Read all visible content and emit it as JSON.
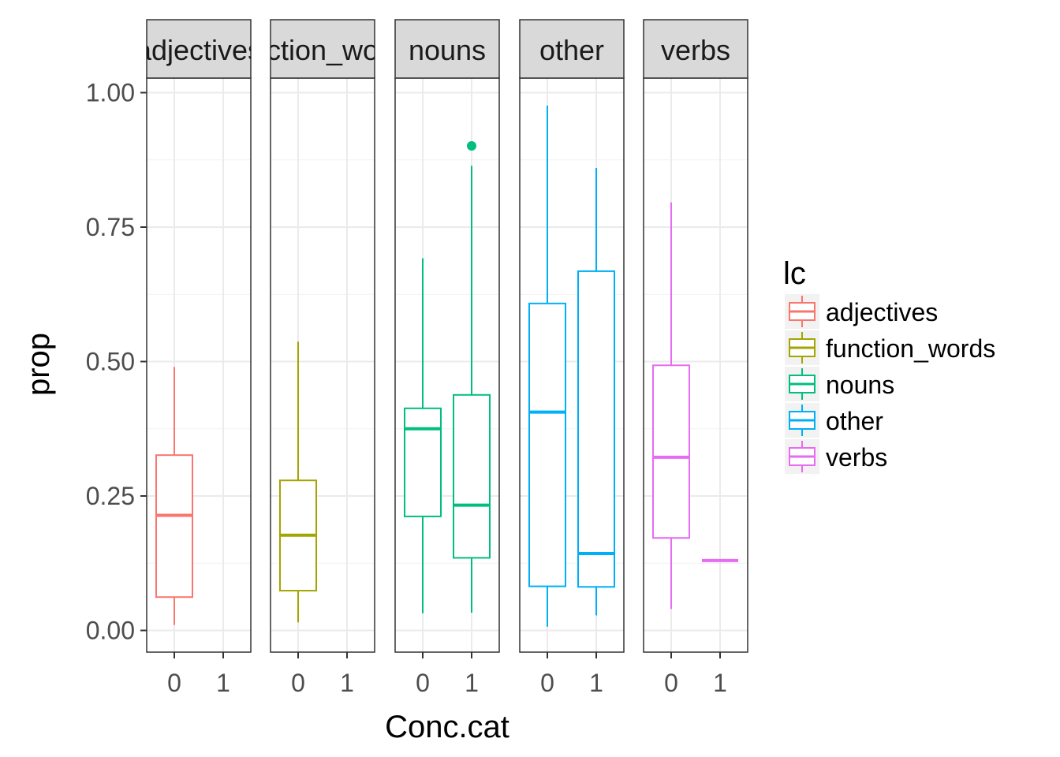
{
  "chart_data": {
    "type": "boxplot",
    "facet_variable": "lc",
    "xlabel": "Conc.cat",
    "ylabel": "prop",
    "ylim": [
      -0.04,
      1.04
    ],
    "y_ticks": [
      0.0,
      0.25,
      0.5,
      0.75,
      1.0
    ],
    "y_tick_labels": [
      "0.00",
      "0.25",
      "0.50",
      "0.75",
      "1.00"
    ],
    "x_categories": [
      "0",
      "1"
    ],
    "grid": true,
    "legend_position": "right",
    "legend": {
      "title": "lc",
      "entries": [
        "adjectives",
        "function_words",
        "nouns",
        "other",
        "verbs"
      ]
    },
    "colors": {
      "adjectives": "#F8766D",
      "function_words": "#A3A500",
      "nouns": "#00BF7D",
      "other": "#00B0F6",
      "verbs": "#E76BF3"
    },
    "facets": [
      {
        "strip_label": "adjectives",
        "boxes": [
          {
            "x": "0",
            "min": 0.01,
            "q1": 0.062,
            "median": 0.214,
            "q3": 0.326,
            "max": 0.49,
            "outliers": []
          }
        ]
      },
      {
        "strip_label": "function_words",
        "boxes": [
          {
            "x": "0",
            "min": 0.015,
            "q1": 0.074,
            "median": 0.177,
            "q3": 0.279,
            "max": 0.537,
            "outliers": []
          }
        ]
      },
      {
        "strip_label": "nouns",
        "boxes": [
          {
            "x": "0",
            "min": 0.032,
            "q1": 0.212,
            "median": 0.375,
            "q3": 0.413,
            "max": 0.692,
            "outliers": []
          },
          {
            "x": "1",
            "min": 0.033,
            "q1": 0.135,
            "median": 0.233,
            "q3": 0.438,
            "max": 0.864,
            "outliers": [
              0.901
            ]
          }
        ]
      },
      {
        "strip_label": "other",
        "boxes": [
          {
            "x": "0",
            "min": 0.007,
            "q1": 0.082,
            "median": 0.406,
            "q3": 0.608,
            "max": 0.976,
            "outliers": []
          },
          {
            "x": "1",
            "min": 0.028,
            "q1": 0.081,
            "median": 0.143,
            "q3": 0.668,
            "max": 0.86,
            "outliers": []
          }
        ]
      },
      {
        "strip_label": "verbs",
        "boxes": [
          {
            "x": "0",
            "min": 0.04,
            "q1": 0.172,
            "median": 0.322,
            "q3": 0.493,
            "max": 0.796,
            "outliers": []
          },
          {
            "x": "1",
            "min": 0.13,
            "q1": 0.13,
            "median": 0.13,
            "q3": 0.13,
            "max": 0.13,
            "outliers": []
          }
        ]
      }
    ]
  }
}
